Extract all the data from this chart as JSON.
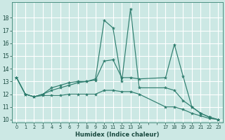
{
  "xlabel": "Humidex (Indice chaleur)",
  "bg_color": "#cce8e4",
  "grid_color": "#ffffff",
  "line_color": "#2e7d6e",
  "xlim": [
    -0.5,
    23.5
  ],
  "ylim": [
    9.8,
    19.2
  ],
  "xtick_labels": [
    "0",
    "1",
    "2",
    "3",
    "4",
    "5",
    "6",
    "7",
    "8",
    "9",
    "10",
    "11",
    "12",
    "13",
    "14",
    "",
    "",
    "17",
    "18",
    "19",
    "20",
    "21",
    "22",
    "23"
  ],
  "xtick_positions": [
    0,
    1,
    2,
    3,
    4,
    5,
    6,
    7,
    8,
    9,
    10,
    11,
    12,
    13,
    14,
    15,
    16,
    17,
    18,
    19,
    20,
    21,
    22,
    23
  ],
  "yticks": [
    10,
    11,
    12,
    13,
    14,
    15,
    16,
    17,
    18
  ],
  "series": [
    {
      "x": [
        0,
        1,
        2,
        3,
        4,
        5,
        6,
        7,
        8,
        9,
        10,
        11,
        12,
        13,
        14,
        17,
        18,
        19,
        20,
        21,
        22,
        23
      ],
      "y": [
        13.3,
        12.0,
        11.8,
        12.0,
        12.5,
        12.7,
        12.9,
        13.0,
        13.0,
        13.2,
        17.8,
        17.2,
        13.0,
        18.7,
        12.5,
        12.5,
        12.3,
        11.5,
        11.0,
        10.5,
        10.2,
        10.0
      ]
    },
    {
      "x": [
        0,
        1,
        2,
        3,
        4,
        5,
        6,
        7,
        8,
        9,
        10,
        11,
        12,
        13,
        14,
        17,
        18,
        19,
        20,
        21,
        22,
        23
      ],
      "y": [
        13.3,
        12.0,
        11.8,
        12.0,
        12.3,
        12.5,
        12.7,
        12.9,
        13.0,
        13.1,
        14.6,
        14.7,
        13.3,
        13.3,
        13.2,
        13.3,
        15.9,
        13.4,
        11.0,
        10.5,
        10.2,
        10.0
      ]
    },
    {
      "x": [
        0,
        1,
        2,
        3,
        4,
        5,
        6,
        7,
        8,
        9,
        10,
        11,
        12,
        13,
        14,
        17,
        18,
        19,
        20,
        21,
        22,
        23
      ],
      "y": [
        13.3,
        12.0,
        11.8,
        11.9,
        11.9,
        11.9,
        12.0,
        12.0,
        12.0,
        12.0,
        12.3,
        12.3,
        12.2,
        12.2,
        12.0,
        11.0,
        11.0,
        10.8,
        10.5,
        10.3,
        10.1,
        10.0
      ]
    }
  ]
}
